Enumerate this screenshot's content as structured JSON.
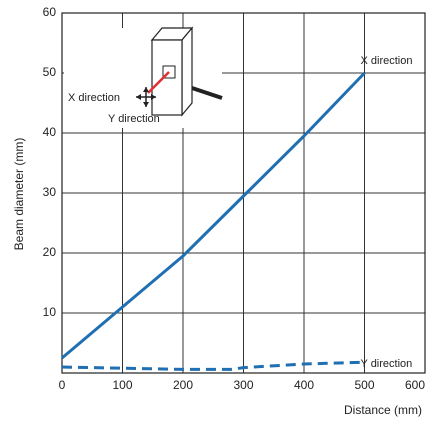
{
  "chart_data": {
    "type": "line",
    "x_label": "Distance (mm)",
    "y_label": "Beam diameter (mm)",
    "xlim": [
      0,
      600
    ],
    "xticks": [
      0,
      100,
      200,
      300,
      400,
      500,
      600
    ],
    "ylim": [
      0,
      60
    ],
    "yticks": [
      10,
      20,
      30,
      40,
      50,
      60
    ],
    "grid": true,
    "series": [
      {
        "name": "X direction",
        "color": "#1f6fb2",
        "dashed": false,
        "x": [
          0,
          100,
          200,
          300,
          400,
          500
        ],
        "values": [
          2.5,
          11,
          19.5,
          29.5,
          39.5,
          50
        ]
      },
      {
        "name": "Y direction",
        "color": "#1f6fb2",
        "dashed": true,
        "x": [
          0,
          100,
          200,
          280,
          300,
          400,
          500
        ],
        "values": [
          1,
          0.8,
          0.6,
          0.6,
          0.9,
          1.5,
          1.8
        ]
      }
    ],
    "inset_labels": [
      "X direction",
      "Y direction"
    ]
  }
}
